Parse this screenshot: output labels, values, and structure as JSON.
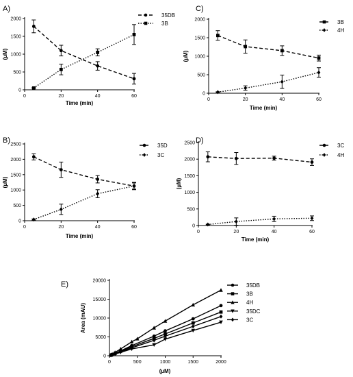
{
  "chart_data": [
    {
      "panel_label": "A)",
      "type": "line",
      "xlabel": "Time (min)",
      "ylabel": "(µM)",
      "xlim": [
        0,
        60
      ],
      "ylim": [
        0,
        2000
      ],
      "xticks": [
        0,
        20,
        40,
        60
      ],
      "yticks": [
        0,
        500,
        1000,
        1500,
        2000
      ],
      "legend_position": "right",
      "series": [
        {
          "name": "35DB",
          "marker": "circle",
          "dash": "dashed",
          "x": [
            5,
            20,
            40,
            60
          ],
          "y": [
            1780,
            1100,
            670,
            310
          ],
          "err": [
            180,
            150,
            120,
            150
          ]
        },
        {
          "name": "3B",
          "marker": "square",
          "dash": "dotted",
          "x": [
            5,
            20,
            40,
            60
          ],
          "y": [
            50,
            570,
            1050,
            1550
          ],
          "err": [
            20,
            150,
            100,
            280
          ]
        }
      ]
    },
    {
      "panel_label": "C)",
      "type": "line",
      "xlabel": "Time (min)",
      "ylabel": "(µM)",
      "xlim": [
        0,
        60
      ],
      "ylim": [
        0,
        2000
      ],
      "xticks": [
        0,
        20,
        40,
        60
      ],
      "yticks": [
        0,
        500,
        1000,
        1500,
        2000
      ],
      "legend_position": "right",
      "series": [
        {
          "name": "3B",
          "marker": "square",
          "dash": "dashed",
          "x": [
            5,
            20,
            40,
            60
          ],
          "y": [
            1560,
            1260,
            1150,
            950
          ],
          "err": [
            130,
            180,
            130,
            80
          ]
        },
        {
          "name": "4H",
          "marker": "diamond",
          "dash": "dotted",
          "x": [
            5,
            20,
            40,
            60
          ],
          "y": [
            30,
            140,
            310,
            560
          ],
          "err": [
            10,
            60,
            180,
            130
          ]
        }
      ]
    },
    {
      "panel_label": "B)",
      "type": "line",
      "xlabel": "Time (min)",
      "ylabel": "(µM)",
      "xlim": [
        0,
        60
      ],
      "ylim": [
        0,
        2500
      ],
      "xticks": [
        0,
        20,
        40,
        60
      ],
      "yticks": [
        0,
        500,
        1000,
        1500,
        2000,
        2500
      ],
      "legend_position": "right",
      "series": [
        {
          "name": "35D",
          "marker": "circle",
          "dash": "dashed",
          "x": [
            5,
            20,
            40,
            60
          ],
          "y": [
            2080,
            1660,
            1350,
            1130
          ],
          "err": [
            100,
            250,
            120,
            100
          ]
        },
        {
          "name": "3C",
          "marker": "diamond",
          "dash": "dotted",
          "x": [
            5,
            20,
            40,
            60
          ],
          "y": [
            40,
            370,
            880,
            1130
          ],
          "err": [
            20,
            170,
            130,
            120
          ]
        }
      ]
    },
    {
      "panel_label": "D)",
      "type": "line",
      "xlabel": "Time (min)",
      "ylabel": "(µM)",
      "xlim": [
        0,
        60
      ],
      "ylim": [
        0,
        2500
      ],
      "xticks": [
        0,
        20,
        40,
        60
      ],
      "yticks": [
        0,
        500,
        1000,
        1500,
        2000,
        2500
      ],
      "legend_position": "right",
      "series": [
        {
          "name": "3C",
          "marker": "circle",
          "dash": "dashed",
          "x": [
            5,
            20,
            40,
            60
          ],
          "y": [
            2070,
            2020,
            2030,
            1910
          ],
          "err": [
            150,
            180,
            60,
            100
          ]
        },
        {
          "name": "4H",
          "marker": "diamond",
          "dash": "dotted",
          "x": [
            5,
            20,
            40,
            60
          ],
          "y": [
            30,
            120,
            200,
            220
          ],
          "err": [
            10,
            110,
            80,
            70
          ]
        }
      ]
    },
    {
      "panel_label": "E)",
      "type": "line",
      "xlabel": "(µM)",
      "ylabel": "Area (mAU)",
      "xlim": [
        0,
        2000
      ],
      "ylim": [
        0,
        20000
      ],
      "xticks": [
        0,
        500,
        1000,
        1500,
        2000
      ],
      "yticks": [
        0,
        5000,
        10000,
        15000,
        20000
      ],
      "legend_position": "right",
      "series": [
        {
          "name": "35DB",
          "marker": "circle",
          "dash": "solid",
          "x": [
            25,
            50,
            100,
            200,
            400,
            800,
            1000,
            1500,
            2000
          ],
          "y": [
            170,
            340,
            670,
            1300,
            2700,
            5200,
            6600,
            9800,
            13300
          ]
        },
        {
          "name": "3B",
          "marker": "square",
          "dash": "solid",
          "x": [
            25,
            50,
            100,
            200,
            400,
            800,
            1000,
            1500,
            2000
          ],
          "y": [
            150,
            300,
            600,
            1200,
            2400,
            4600,
            5800,
            8700,
            11600
          ]
        },
        {
          "name": "4H",
          "marker": "triangle-up",
          "dash": "solid",
          "x": [
            25,
            50,
            100,
            200,
            400,
            500,
            800,
            1000,
            1500,
            2000
          ],
          "y": [
            220,
            440,
            880,
            1800,
            3700,
            4500,
            7400,
            9200,
            13500,
            17400
          ]
        },
        {
          "name": "35DC",
          "marker": "triangle-down",
          "dash": "solid",
          "x": [
            25,
            50,
            100,
            200,
            400,
            800,
            1000,
            1500,
            2000
          ],
          "y": [
            110,
            220,
            450,
            900,
            1800,
            2900,
            4400,
            6700,
            8900
          ]
        },
        {
          "name": "3C",
          "marker": "diamond",
          "dash": "solid",
          "x": [
            25,
            50,
            100,
            200,
            400,
            800,
            1000,
            1500,
            2000
          ],
          "y": [
            130,
            260,
            520,
            1050,
            2100,
            4100,
            5200,
            7800,
            10400
          ]
        }
      ]
    }
  ]
}
